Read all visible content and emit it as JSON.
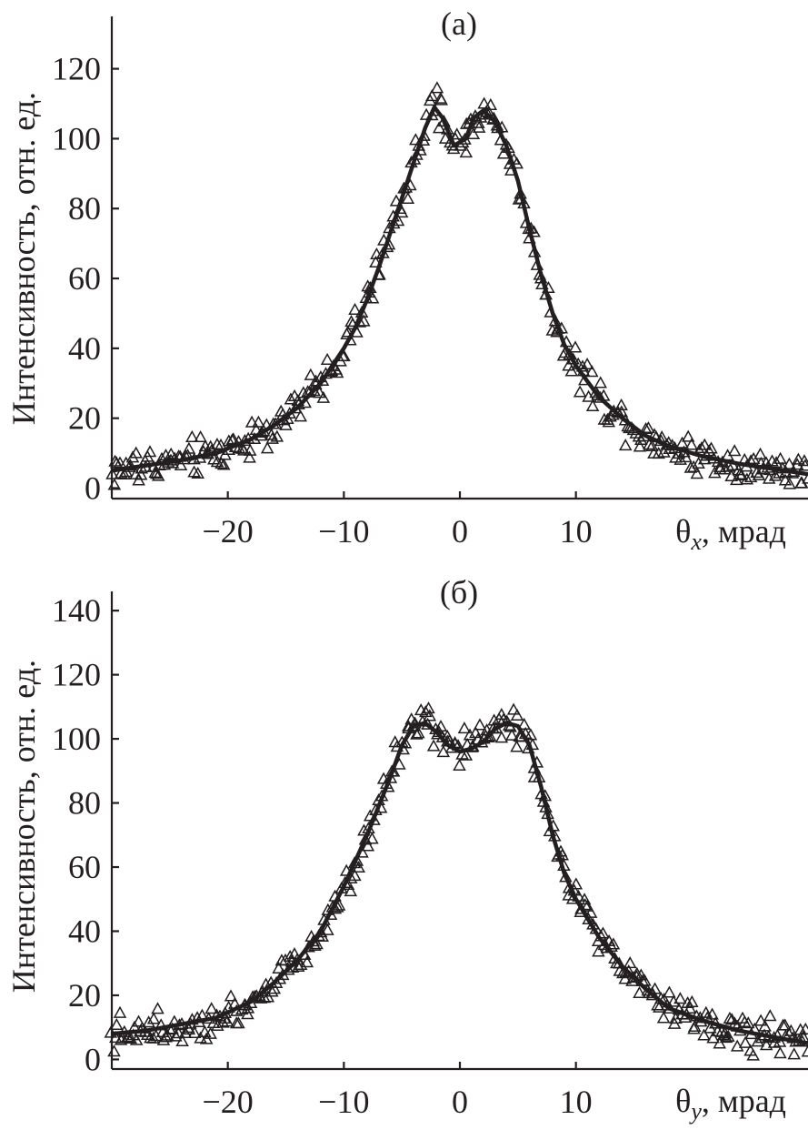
{
  "chart_data": [
    {
      "type": "scatter",
      "title": "(а)",
      "ylabel": "Интенсивность, отн. ед.",
      "xlabel_symbol": "θ",
      "xlabel_sub": "x",
      "xlabel_unit": ", мрад",
      "xlim": [
        -30,
        30
      ],
      "ylim": [
        -3,
        135
      ],
      "yticks": [
        0,
        20,
        40,
        60,
        80,
        100,
        120
      ],
      "ytick_labels": [
        "0",
        "20",
        "40",
        "60",
        "80",
        "100",
        "120"
      ],
      "xticks": [
        -20,
        -10,
        0,
        10
      ],
      "xtick_labels": [
        "−20",
        "−10",
        "0",
        "10"
      ],
      "series": [
        {
          "name": "fit",
          "style": "line",
          "x": [
            -30,
            -27,
            -24,
            -21,
            -18,
            -16,
            -14,
            -12,
            -10,
            -9,
            -8,
            -7,
            -6,
            -5,
            -4,
            -3,
            -2.2,
            -1.5,
            -0.5,
            0.5,
            1.2,
            2,
            3,
            4,
            5,
            6,
            7,
            8,
            9,
            10,
            12,
            14,
            16,
            18,
            21,
            24,
            27,
            30
          ],
          "y": [
            5,
            6.5,
            8,
            10,
            14,
            18,
            23,
            30,
            40,
            46,
            54,
            63,
            73,
            83,
            93,
            103,
            109,
            106,
            98,
            100,
            106,
            108,
            105,
            98,
            88,
            74,
            61,
            50,
            41,
            35,
            26,
            20,
            15,
            12,
            9,
            7,
            5.5,
            4
          ]
        },
        {
          "name": "measured",
          "style": "markers",
          "marker": "triangle-open",
          "noise_amplitude": 5,
          "points_per_mrad": 6
        }
      ]
    },
    {
      "type": "scatter",
      "title": "(б)",
      "ylabel": "Интенсивность, отн. ед.",
      "xlabel_symbol": "θ",
      "xlabel_sub": "y",
      "xlabel_unit": ", мрад",
      "xlim": [
        -30,
        30
      ],
      "ylim": [
        -3,
        146
      ],
      "yticks": [
        0,
        20,
        40,
        60,
        80,
        100,
        120,
        140
      ],
      "ytick_labels": [
        "0",
        "20",
        "40",
        "60",
        "80",
        "100",
        "120",
        "140"
      ],
      "xticks": [
        -20,
        -10,
        0,
        10
      ],
      "xtick_labels": [
        "−20",
        "−10",
        "0",
        "10"
      ],
      "series": [
        {
          "name": "fit",
          "style": "line",
          "x": [
            -30,
            -27,
            -24,
            -21,
            -18,
            -16,
            -14,
            -12,
            -10,
            -8,
            -6,
            -5,
            -4,
            -3,
            -2,
            -1,
            0,
            1,
            2,
            3,
            4,
            5,
            6,
            7,
            8,
            9,
            10,
            12,
            14,
            16,
            18,
            21,
            24,
            27,
            30
          ],
          "y": [
            8,
            9,
            11,
            13,
            18,
            24,
            31,
            40,
            54,
            70,
            88,
            98,
            104,
            105,
            102,
            98,
            96,
            97,
            99,
            103,
            105,
            104,
            98,
            85,
            70,
            58,
            50,
            38,
            29,
            22,
            16,
            12,
            9,
            7,
            5
          ]
        },
        {
          "name": "measured",
          "style": "markers",
          "marker": "triangle-open",
          "noise_amplitude": 5,
          "points_per_mrad": 6
        }
      ]
    }
  ]
}
